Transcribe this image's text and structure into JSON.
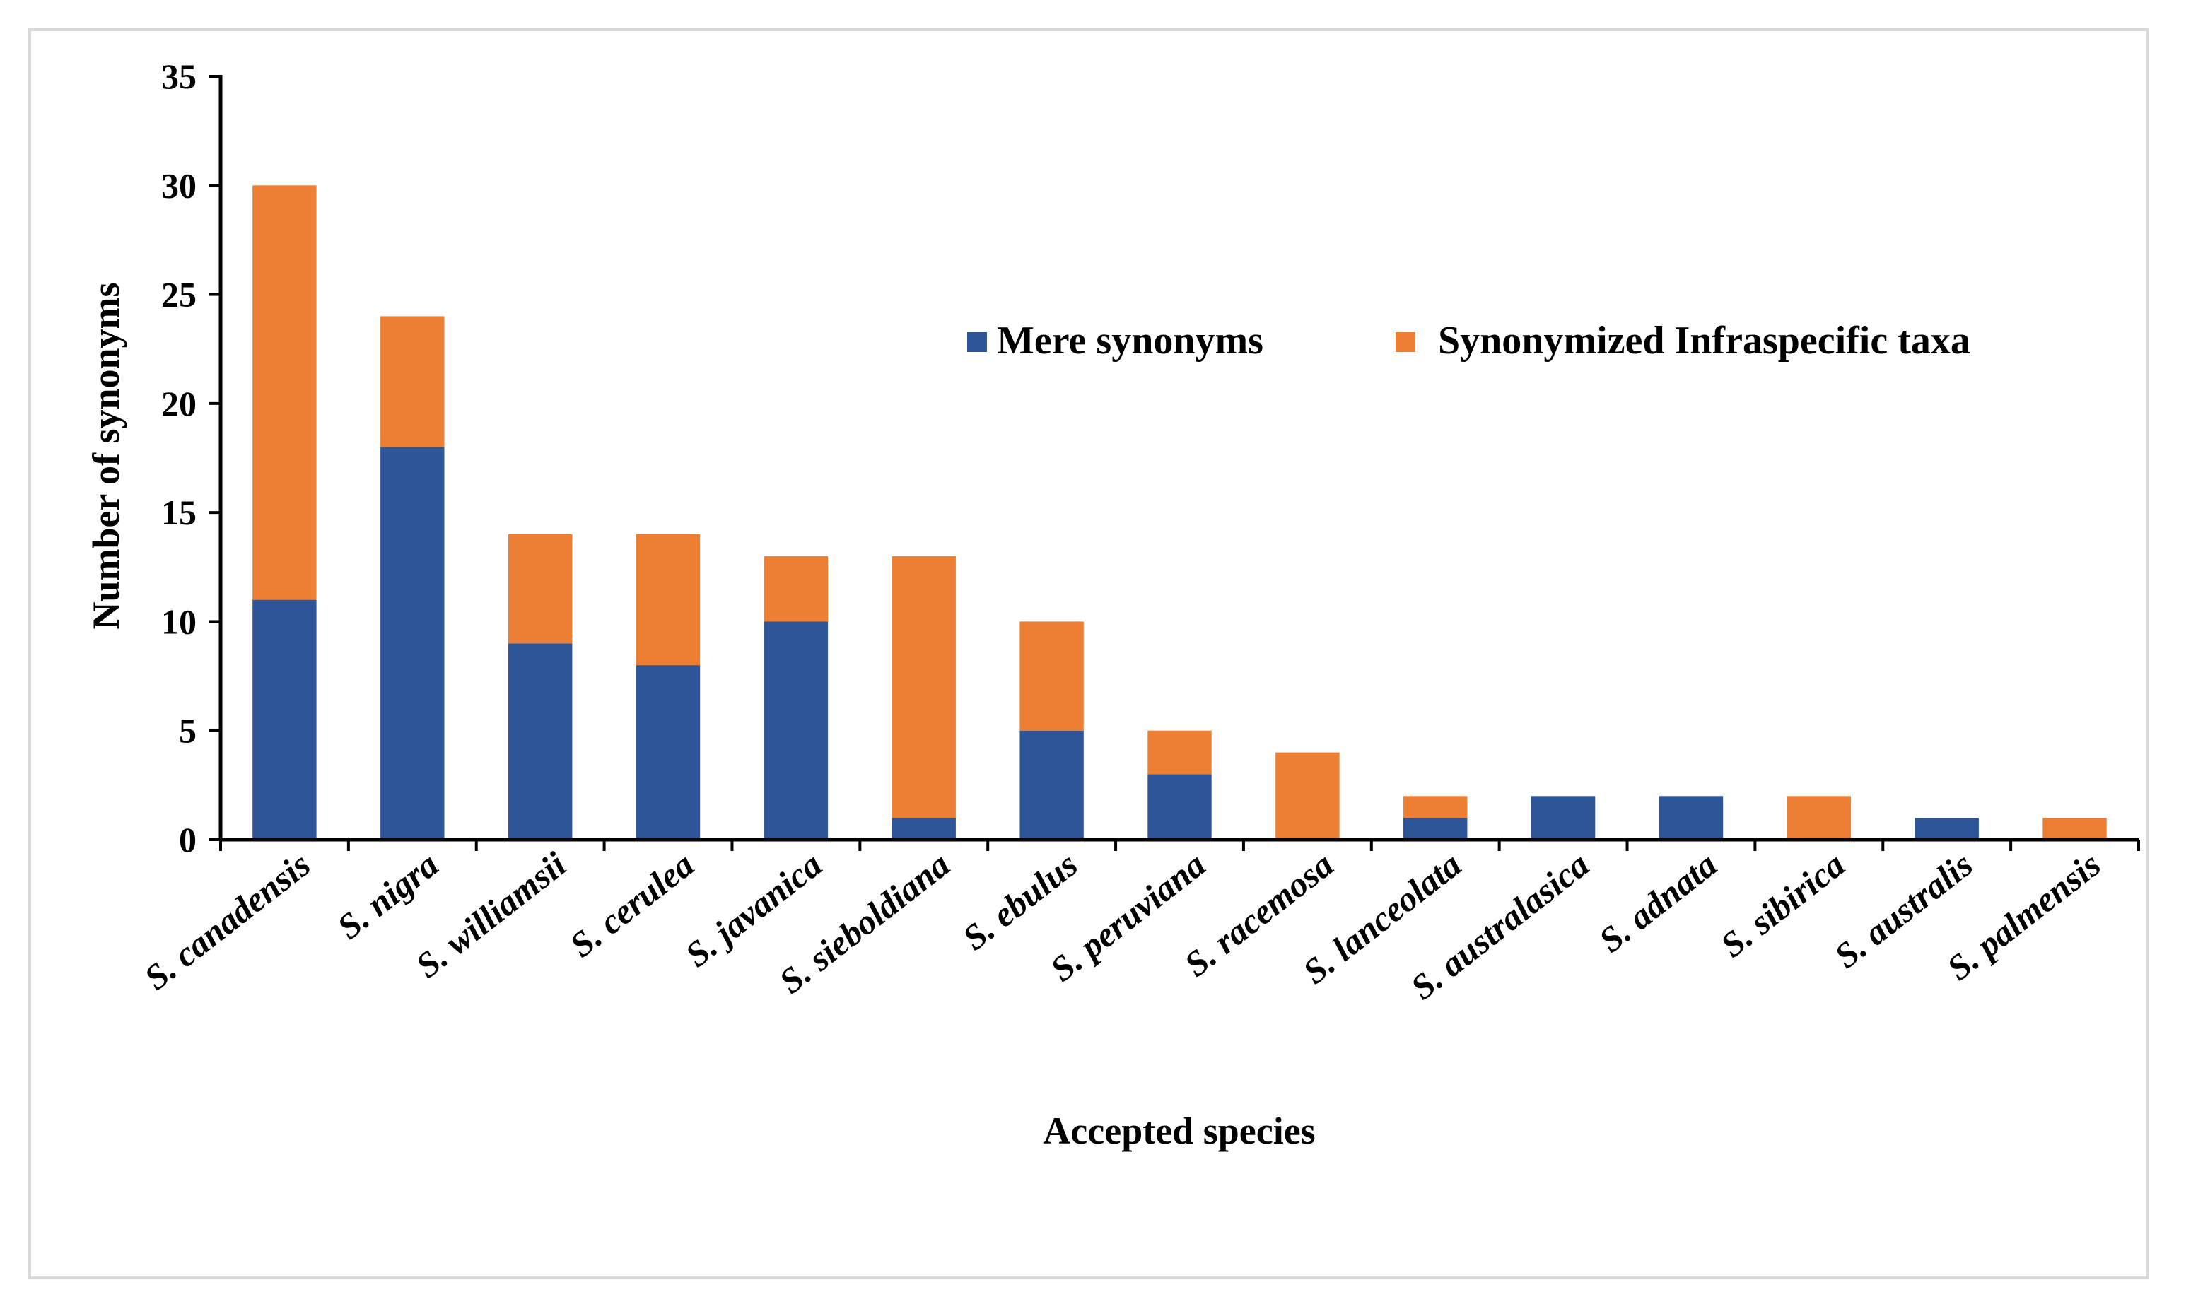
{
  "colors": {
    "mere": "#2e5597",
    "infra": "#ec7f33",
    "axis": "#000000",
    "frame": "#d9d9d9"
  },
  "chart_data": {
    "type": "bar",
    "stacked": true,
    "title": "",
    "xlabel": "Accepted species",
    "ylabel": "Number of synonyms",
    "ylim": [
      0,
      35
    ],
    "yticks": [
      0,
      5,
      10,
      15,
      20,
      25,
      30,
      35
    ],
    "ytick_labels": [
      "0",
      "5",
      "10",
      "15",
      "20",
      "25",
      "30",
      "35"
    ],
    "grid": false,
    "legend_position": "top-right",
    "categories": [
      "S. canadensis",
      "S. nigra",
      "S. williamsii",
      "S. cerulea",
      "S. javanica",
      "S. sieboldiana",
      "S. ebulus",
      "S. peruviana",
      "S. racemosa",
      "S. lanceolata",
      "S. australasica",
      "S. adnata",
      "S. sibirica",
      "S. australis",
      "S. palmensis"
    ],
    "series": [
      {
        "name": "Mere synonyms",
        "color": "#2e5597",
        "values": [
          11,
          18,
          9,
          8,
          10,
          1,
          5,
          3,
          0,
          1,
          2,
          2,
          0,
          1,
          0
        ]
      },
      {
        "name": "Synonymized Infraspecific taxa",
        "color": "#ec7f33",
        "values": [
          19,
          6,
          5,
          6,
          3,
          12,
          5,
          2,
          4,
          1,
          0,
          0,
          2,
          0,
          1
        ]
      }
    ]
  }
}
